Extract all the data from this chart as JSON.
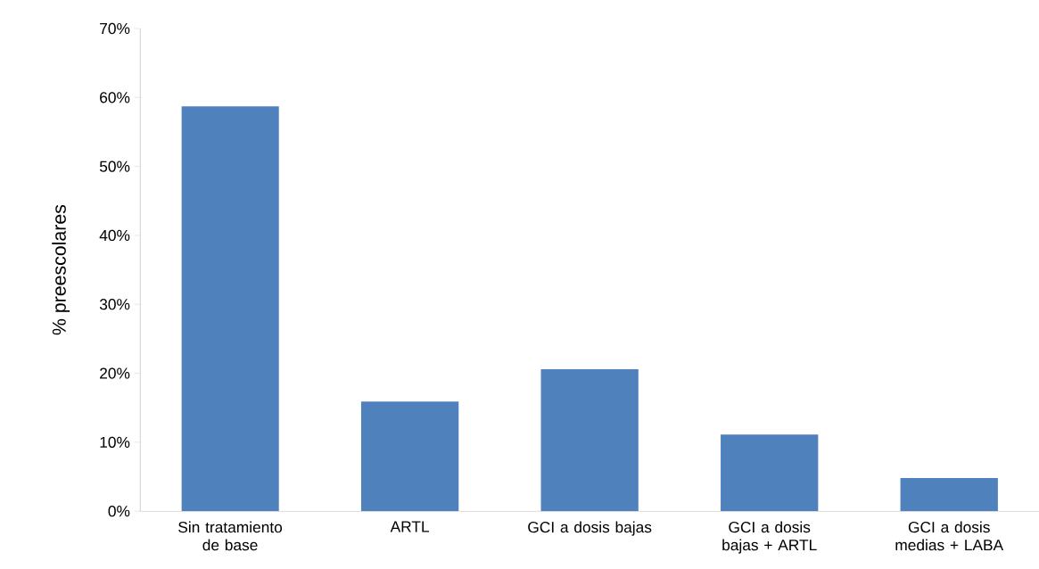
{
  "chart_data": {
    "type": "bar",
    "ylabel": "%  preescolares",
    "categories": [
      "Sin tratamiento de base",
      "ARTL",
      "GCI a dosis bajas",
      "GCI a dosis bajas + ARTL",
      "GCI a dosis medias + LABA"
    ],
    "values": [
      58.7,
      15.9,
      20.6,
      11.1,
      4.8
    ],
    "color": "#4f81bd",
    "ylim": [
      0,
      70
    ],
    "yticks": [
      {
        "value": 0,
        "label": "0%"
      },
      {
        "value": 10,
        "label": "10%"
      },
      {
        "value": 20,
        "label": "20%"
      },
      {
        "value": 30,
        "label": "30%"
      },
      {
        "value": 40,
        "label": "40%"
      },
      {
        "value": 50,
        "label": "50%"
      },
      {
        "value": 60,
        "label": "60%"
      },
      {
        "value": 70,
        "label": "70%"
      }
    ],
    "grid": false
  }
}
